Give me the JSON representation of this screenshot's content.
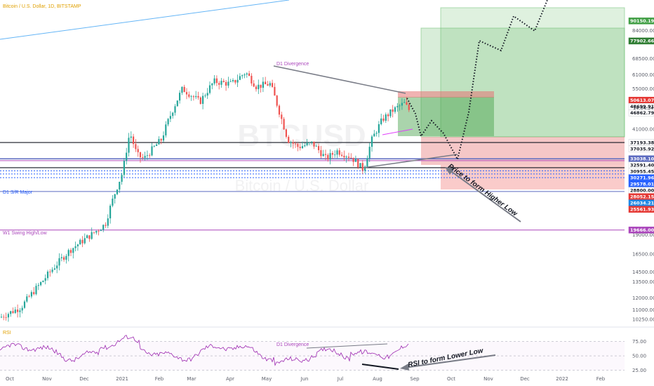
{
  "header": {
    "symbol_title": "Bitcoin / U.S. Dollar, 1D, BITSTAMP"
  },
  "watermark": {
    "ticker": "BTCUSD",
    "name": "Bitcoin / U.S. Dollar"
  },
  "colors": {
    "up": "#26a69a",
    "down": "#ef5350",
    "rsi": "#9c27b0",
    "accent_blue": "#2962ff",
    "purple_line": "#ab47bc"
  },
  "chart_data": {
    "type": "candlestick",
    "y_scale": "log",
    "ylim": [
      9900,
      105000
    ],
    "y_ticks": [
      {
        "value": 84000.0,
        "label": "84000.00"
      },
      {
        "value": 68500.0,
        "label": "68500.00"
      },
      {
        "value": 61000.0,
        "label": "61000.00"
      },
      {
        "value": 55000.0,
        "label": "55000.00"
      },
      {
        "value": 41000.0,
        "label": "41000.00"
      },
      {
        "value": 19000.0,
        "label": "19000.00"
      },
      {
        "value": 16500.0,
        "label": "16500.00"
      },
      {
        "value": 14500.0,
        "label": "14500.00"
      },
      {
        "value": 13500.0,
        "label": "13500.00"
      },
      {
        "value": 12000.0,
        "label": "12000.00"
      },
      {
        "value": 11000.0,
        "label": "11000.00"
      },
      {
        "value": 10250.0,
        "label": "10250.00"
      }
    ],
    "x_labels": [
      "Oct",
      "Nov",
      "Dec",
      "2021",
      "Feb",
      "Mar",
      "Apr",
      "May",
      "Jun",
      "Jul",
      "Aug",
      "Sep",
      "Oct",
      "Nov",
      "Dec",
      "2022",
      "Feb"
    ],
    "price_tags": [
      {
        "value": 90150.19,
        "label": "90150.19",
        "bg": "#43a047",
        "fg": "#ffffff"
      },
      {
        "value": 77902.66,
        "label": "77902.66",
        "bg": "#2e7d32",
        "fg": "#ffffff"
      },
      {
        "value": 50613.07,
        "label": "50613.07",
        "bg": "#e53935",
        "fg": "#ffffff"
      },
      {
        "value": 48699.91,
        "label": "48699.91",
        "bg": "#ffffff",
        "fg": "#131722"
      },
      {
        "value": 46862.79,
        "label": "46862.79",
        "bg": "#ffffff",
        "fg": "#131722"
      },
      {
        "value": 37193.38,
        "label": "37193.38",
        "bg": "#ffffff",
        "fg": "#131722"
      },
      {
        "value": 37035.92,
        "label": "37035.92",
        "bg": "#ffffff",
        "fg": "#131722"
      },
      {
        "value": 33038.1,
        "label": "33038.10",
        "bg": "#5c6bc0",
        "fg": "#ffffff"
      },
      {
        "value": 32591.4,
        "label": "32591.40",
        "bg": "#ffffff",
        "fg": "#131722"
      },
      {
        "value": 30955.45,
        "label": "30955.45",
        "bg": "#ffffff",
        "fg": "#131722"
      },
      {
        "value": 30271.96,
        "label": "30271.96",
        "bg": "#2962ff",
        "fg": "#ffffff"
      },
      {
        "value": 29578.01,
        "label": "29578.01",
        "bg": "#2962ff",
        "fg": "#ffffff"
      },
      {
        "value": 28800.0,
        "label": "28800.00",
        "bg": "#ffffff",
        "fg": "#131722"
      },
      {
        "value": 28052.15,
        "label": "28052.15",
        "bg": "#e53935",
        "fg": "#ffffff"
      },
      {
        "value": 26034.21,
        "label": "26034.21",
        "bg": "#1e88e5",
        "fg": "#ffffff"
      },
      {
        "value": 25561.93,
        "label": "25561.93",
        "bg": "#e53935",
        "fg": "#ffffff"
      },
      {
        "value": 19666.0,
        "label": "19666.00",
        "bg": "#ab47bc",
        "fg": "#ffffff"
      }
    ],
    "countdown": "14:04:34",
    "rsi_ticks": [
      {
        "value": 75,
        "label": "75.00"
      },
      {
        "value": 50,
        "label": "50.00"
      },
      {
        "value": 25,
        "label": "25.00"
      }
    ],
    "annotations": {
      "d1_divergence_price": "D1 Divergence",
      "d1_divergence_rsi": "D1 Divergence",
      "higher_low": "Price to form Higher Low",
      "lower_low": "RSI to form Lower Low",
      "sr_major": "D1 S/R Major",
      "swing": "W1 Swing High/Low",
      "rsi_label": "RSI"
    }
  }
}
